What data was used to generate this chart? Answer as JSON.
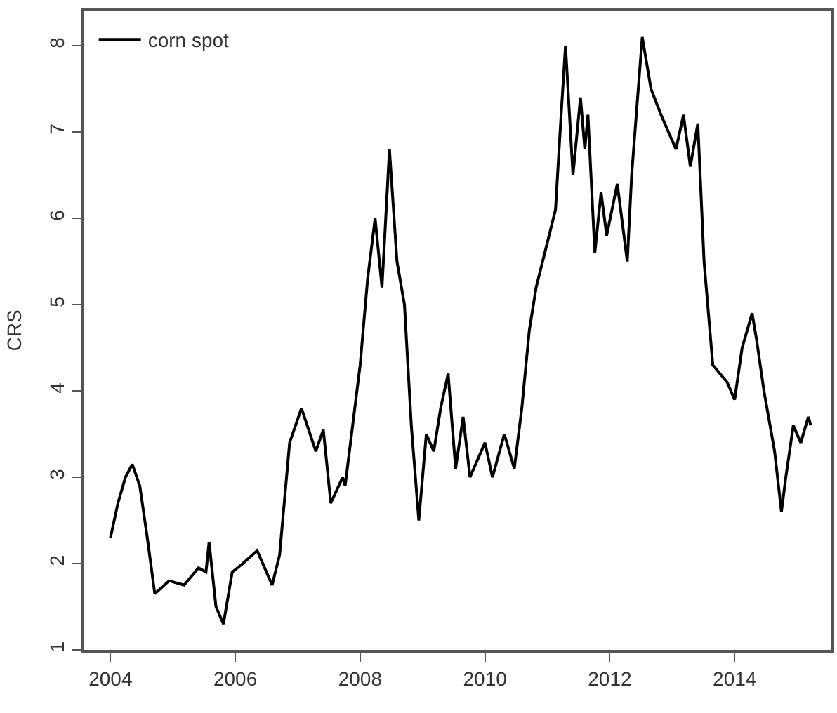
{
  "chart_data": {
    "type": "line",
    "ylabel": "CRS",
    "legend": "top left",
    "line_style": "solid",
    "marker": "none",
    "xlim": [
      2003.58,
      2015.55
    ],
    "xticks": [
      2004,
      2006,
      2008,
      2010,
      2012,
      2014
    ],
    "ylim": [
      1.0,
      8.4
    ],
    "yticks": [
      1,
      2,
      3,
      4,
      5,
      6,
      7,
      8
    ],
    "series": [
      {
        "name": "corn spot",
        "color": "#000000",
        "x": [
          2004.0,
          2004.12,
          2004.24,
          2004.35,
          2004.47,
          2004.59,
          2004.71,
          2004.94,
          2005.18,
          2005.41,
          2005.53,
          2005.58,
          2005.69,
          2005.81,
          2005.95,
          2006.12,
          2006.35,
          2006.59,
          2006.71,
          2006.87,
          2007.06,
          2007.29,
          2007.41,
          2007.53,
          2007.72,
          2007.76,
          2008.0,
          2008.12,
          2008.24,
          2008.35,
          2008.47,
          2008.59,
          2008.71,
          2008.82,
          2008.94,
          2009.06,
          2009.18,
          2009.29,
          2009.41,
          2009.53,
          2009.65,
          2009.76,
          2010.0,
          2010.12,
          2010.31,
          2010.47,
          2010.59,
          2010.71,
          2010.82,
          2011.13,
          2011.22,
          2011.29,
          2011.41,
          2011.53,
          2011.6,
          2011.65,
          2011.76,
          2011.86,
          2011.95,
          2012.12,
          2012.28,
          2012.35,
          2012.52,
          2012.66,
          2012.82,
          2013.06,
          2013.18,
          2013.29,
          2013.41,
          2013.51,
          2013.65,
          2013.88,
          2014.0,
          2014.12,
          2014.28,
          2014.35,
          2014.47,
          2014.64,
          2014.75,
          2014.82,
          2014.94,
          2015.06,
          2015.18,
          2015.22
        ],
        "values": [
          2.3,
          2.7,
          3.0,
          3.15,
          2.9,
          2.3,
          1.65,
          1.8,
          1.75,
          1.95,
          1.9,
          2.25,
          1.5,
          1.3,
          1.9,
          2.0,
          2.15,
          1.75,
          2.1,
          3.4,
          3.8,
          3.3,
          3.55,
          2.7,
          3.0,
          2.9,
          4.3,
          5.3,
          6.0,
          5.2,
          6.8,
          5.5,
          5.0,
          3.6,
          2.5,
          3.5,
          3.3,
          3.8,
          4.2,
          3.1,
          3.7,
          3.0,
          3.4,
          3.0,
          3.5,
          3.1,
          3.8,
          4.7,
          5.2,
          6.1,
          7.2,
          8.0,
          6.5,
          7.4,
          6.8,
          7.2,
          5.6,
          6.3,
          5.8,
          6.4,
          5.5,
          6.5,
          8.1,
          7.5,
          7.2,
          6.8,
          7.2,
          6.6,
          7.1,
          5.5,
          4.3,
          4.1,
          3.9,
          4.5,
          4.9,
          4.6,
          4.0,
          3.3,
          2.6,
          3.0,
          3.6,
          3.4,
          3.7,
          3.6
        ]
      }
    ]
  }
}
